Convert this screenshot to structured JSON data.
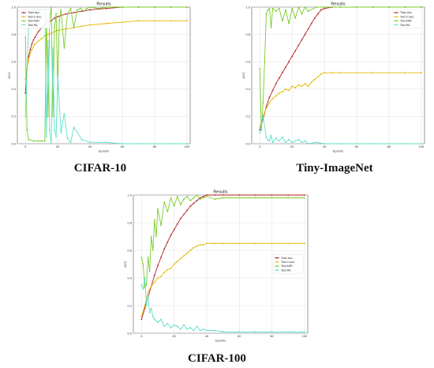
{
  "colors": {
    "train_acc": "#b22222",
    "test_c_acc": "#e6b800",
    "test_asr": "#7acc29",
    "test_ra": "#5fe0c8",
    "grid": "#d9d9d9",
    "axis": "#333333"
  },
  "chart_data": [
    {
      "type": "line",
      "title": "Results",
      "caption": "CIFAR-10",
      "xlabel": "Epochs",
      "ylabel": "ACC",
      "xlim": [
        -5,
        102
      ],
      "ylim": [
        0,
        1.0
      ],
      "xticks": [
        "0",
        "20",
        "40",
        "60",
        "80",
        "100"
      ],
      "yticks": [
        "0.0",
        "0.2",
        "0.4",
        "0.6",
        "0.8",
        "1.0"
      ],
      "grid": true,
      "legend_position": "top-left",
      "series": [
        {
          "name": "Train Acc",
          "x": [
            0,
            1,
            2,
            3,
            4,
            5,
            6,
            8,
            10,
            12,
            14,
            16,
            18,
            20,
            25,
            30,
            35,
            40,
            50,
            60,
            70,
            80,
            90,
            100
          ],
          "y": [
            0.37,
            0.55,
            0.64,
            0.69,
            0.73,
            0.76,
            0.78,
            0.82,
            0.85,
            0.87,
            0.89,
            0.9,
            0.92,
            0.93,
            0.95,
            0.96,
            0.97,
            0.98,
            0.99,
            1.0,
            1.0,
            1.0,
            1.0,
            1.0
          ]
        },
        {
          "name": "Test C-Acc",
          "x": [
            0,
            1,
            2,
            3,
            4,
            5,
            6,
            8,
            10,
            12,
            14,
            16,
            18,
            20,
            25,
            30,
            35,
            40,
            50,
            60,
            70,
            80,
            90,
            100
          ],
          "y": [
            0.47,
            0.55,
            0.62,
            0.66,
            0.69,
            0.71,
            0.73,
            0.75,
            0.77,
            0.79,
            0.8,
            0.81,
            0.82,
            0.83,
            0.84,
            0.85,
            0.86,
            0.87,
            0.88,
            0.89,
            0.9,
            0.9,
            0.9,
            0.9
          ]
        },
        {
          "name": "Test ASR",
          "x": [
            0,
            1,
            2,
            5,
            8,
            10,
            12,
            13,
            14,
            15,
            16,
            17,
            18,
            19,
            20,
            21,
            22,
            24,
            26,
            28,
            30,
            32,
            34,
            36,
            38,
            40,
            45,
            50,
            60,
            70,
            80,
            90,
            100
          ],
          "y": [
            0.78,
            0.1,
            0.03,
            0.02,
            0.02,
            0.02,
            0.02,
            0.95,
            0.2,
            0.9,
            1.0,
            0.2,
            0.85,
            0.95,
            0.4,
            0.9,
            0.98,
            0.7,
            0.95,
            0.99,
            0.85,
            0.98,
            0.99,
            0.97,
            0.99,
            1.0,
            0.99,
            1.0,
            1.0,
            1.0,
            1.0,
            1.0,
            1.0
          ]
        },
        {
          "name": "Test RA",
          "x": [
            0,
            2,
            5,
            8,
            10,
            12,
            13,
            14,
            15,
            16,
            17,
            18,
            19,
            20,
            22,
            24,
            26,
            28,
            30,
            35,
            40,
            50,
            60,
            70,
            80,
            90,
            100
          ],
          "y": [
            0.2,
            0.88,
            0.98,
            0.98,
            0.98,
            0.98,
            0.05,
            0.75,
            0.1,
            0.0,
            0.7,
            0.1,
            0.05,
            0.5,
            0.08,
            0.22,
            0.04,
            0.01,
            0.12,
            0.03,
            0.01,
            0.01,
            0.0,
            0.0,
            0.0,
            0.0,
            0.0
          ]
        }
      ]
    },
    {
      "type": "line",
      "title": "Results",
      "caption": "Tiny-ImageNet",
      "xlabel": "Epochs",
      "ylabel": "ACC",
      "xlim": [
        -5,
        102
      ],
      "ylim": [
        0,
        1.0
      ],
      "xticks": [
        "0",
        "20",
        "40",
        "60",
        "80",
        "100"
      ],
      "yticks": [
        "0.0",
        "0.2",
        "0.4",
        "0.6",
        "0.8",
        "1.0"
      ],
      "grid": true,
      "legend_position": "top-right",
      "series": [
        {
          "name": "Train Acc",
          "x": [
            0,
            2,
            4,
            6,
            8,
            10,
            12,
            14,
            16,
            18,
            20,
            22,
            24,
            26,
            28,
            30,
            32,
            34,
            36,
            38,
            40,
            45,
            50,
            60,
            70,
            80,
            90,
            100
          ],
          "y": [
            0.1,
            0.18,
            0.27,
            0.34,
            0.39,
            0.44,
            0.48,
            0.52,
            0.56,
            0.6,
            0.64,
            0.68,
            0.72,
            0.76,
            0.8,
            0.84,
            0.88,
            0.92,
            0.95,
            0.98,
            0.99,
            1.0,
            1.0,
            1.0,
            1.0,
            1.0,
            1.0,
            1.0
          ]
        },
        {
          "name": "Test C-Acc",
          "x": [
            0,
            2,
            4,
            6,
            8,
            10,
            12,
            14,
            16,
            18,
            20,
            22,
            24,
            26,
            28,
            30,
            32,
            34,
            36,
            38,
            40,
            45,
            50,
            60,
            70,
            80,
            90,
            100
          ],
          "y": [
            0.12,
            0.2,
            0.26,
            0.3,
            0.33,
            0.35,
            0.37,
            0.38,
            0.4,
            0.39,
            0.42,
            0.41,
            0.43,
            0.42,
            0.44,
            0.42,
            0.45,
            0.47,
            0.49,
            0.51,
            0.52,
            0.52,
            0.52,
            0.52,
            0.52,
            0.52,
            0.52,
            0.52
          ]
        },
        {
          "name": "Test ASR",
          "x": [
            0,
            1,
            2,
            3,
            4,
            5,
            6,
            7,
            8,
            10,
            12,
            14,
            16,
            18,
            20,
            22,
            24,
            26,
            28,
            30,
            35,
            40,
            50,
            60,
            70,
            80,
            90,
            100
          ],
          "y": [
            0.55,
            0.1,
            0.3,
            0.6,
            0.95,
            0.98,
            0.99,
            0.85,
            0.99,
            0.97,
            0.99,
            0.9,
            0.98,
            0.88,
            0.99,
            0.92,
            1.0,
            0.95,
            1.0,
            0.97,
            1.0,
            1.0,
            1.0,
            1.0,
            1.0,
            1.0,
            1.0,
            1.0
          ]
        },
        {
          "name": "Test RA",
          "x": [
            0,
            2,
            4,
            5,
            6,
            7,
            8,
            10,
            12,
            14,
            16,
            18,
            20,
            22,
            24,
            26,
            28,
            30,
            35,
            40,
            50,
            60,
            70,
            80,
            90,
            100
          ],
          "y": [
            0.08,
            0.2,
            0.05,
            0.03,
            0.02,
            0.06,
            0.01,
            0.04,
            0.02,
            0.05,
            0.01,
            0.03,
            0.01,
            0.02,
            0.03,
            0.01,
            0.02,
            0.0,
            0.01,
            0.0,
            0.0,
            0.0,
            0.0,
            0.0,
            0.0,
            0.0
          ]
        }
      ]
    },
    {
      "type": "line",
      "title": "Results",
      "caption": "CIFAR-100",
      "xlabel": "Epochs",
      "ylabel": "ACC",
      "xlim": [
        -5,
        102
      ],
      "ylim": [
        0,
        1.0
      ],
      "xticks": [
        "0",
        "20",
        "40",
        "60",
        "80",
        "100"
      ],
      "yticks": [
        "0.0",
        "0.2",
        "0.4",
        "0.6",
        "0.8",
        "1.0"
      ],
      "grid": true,
      "legend_position": "center-right",
      "series": [
        {
          "name": "Train Acc",
          "x": [
            0,
            2,
            4,
            6,
            8,
            10,
            12,
            14,
            16,
            18,
            20,
            22,
            24,
            26,
            28,
            30,
            32,
            34,
            36,
            38,
            40,
            45,
            50,
            60,
            70,
            80,
            90,
            100
          ],
          "y": [
            0.1,
            0.18,
            0.26,
            0.34,
            0.42,
            0.49,
            0.55,
            0.61,
            0.66,
            0.71,
            0.75,
            0.79,
            0.83,
            0.86,
            0.89,
            0.92,
            0.94,
            0.96,
            0.98,
            0.99,
            1.0,
            1.0,
            1.0,
            1.0,
            1.0,
            1.0,
            1.0,
            1.0
          ]
        },
        {
          "name": "Test C-Acc",
          "x": [
            0,
            2,
            4,
            6,
            8,
            10,
            12,
            14,
            16,
            18,
            20,
            22,
            24,
            26,
            28,
            30,
            32,
            34,
            36,
            38,
            40,
            45,
            50,
            60,
            70,
            80,
            90,
            100
          ],
          "y": [
            0.12,
            0.2,
            0.3,
            0.34,
            0.37,
            0.4,
            0.41,
            0.44,
            0.46,
            0.47,
            0.5,
            0.52,
            0.54,
            0.56,
            0.58,
            0.6,
            0.62,
            0.63,
            0.64,
            0.64,
            0.65,
            0.65,
            0.65,
            0.65,
            0.65,
            0.65,
            0.65,
            0.65
          ]
        },
        {
          "name": "Test ASR",
          "x": [
            0,
            1,
            2,
            3,
            4,
            5,
            6,
            7,
            8,
            9,
            10,
            12,
            14,
            16,
            18,
            20,
            22,
            24,
            26,
            28,
            30,
            32,
            34,
            36,
            38,
            40,
            45,
            50,
            60,
            70,
            80,
            90,
            100
          ],
          "y": [
            0.55,
            0.5,
            0.33,
            0.35,
            0.55,
            0.45,
            0.7,
            0.6,
            0.82,
            0.7,
            0.9,
            0.78,
            0.95,
            0.88,
            0.98,
            0.92,
            0.99,
            0.93,
            0.97,
            0.99,
            0.96,
            0.98,
            1.0,
            0.97,
            0.98,
            0.99,
            0.97,
            0.98,
            0.98,
            0.98,
            0.98,
            0.98,
            0.98
          ]
        },
        {
          "name": "Test RA",
          "x": [
            0,
            1,
            2,
            3,
            4,
            5,
            6,
            7,
            8,
            10,
            12,
            14,
            16,
            18,
            20,
            22,
            24,
            26,
            28,
            30,
            32,
            34,
            36,
            38,
            40,
            45,
            50,
            60,
            70,
            80,
            90,
            100
          ],
          "y": [
            0.35,
            0.32,
            0.4,
            0.2,
            0.27,
            0.15,
            0.18,
            0.12,
            0.1,
            0.08,
            0.1,
            0.05,
            0.07,
            0.04,
            0.06,
            0.05,
            0.03,
            0.06,
            0.03,
            0.04,
            0.02,
            0.05,
            0.02,
            0.03,
            0.02,
            0.02,
            0.01,
            0.01,
            0.01,
            0.01,
            0.01,
            0.01
          ]
        }
      ]
    }
  ]
}
